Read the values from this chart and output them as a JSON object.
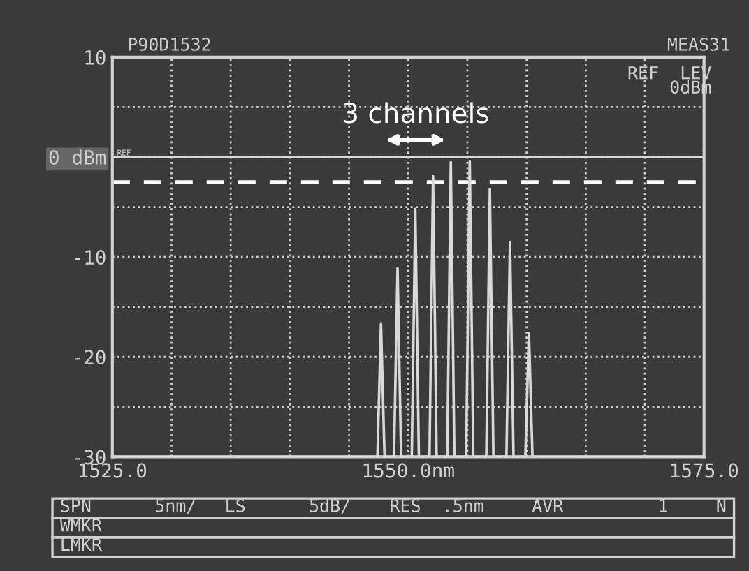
{
  "chart_data": {
    "type": "line",
    "x": [
      1525.0,
      1547.4,
      1547.7,
      1548.0,
      1548.8,
      1549.1,
      1549.4,
      1550.3,
      1550.6,
      1550.9,
      1551.8,
      1552.1,
      1552.4,
      1553.3,
      1553.6,
      1553.9,
      1554.9,
      1555.2,
      1555.5,
      1556.6,
      1556.9,
      1557.2,
      1558.3,
      1558.6,
      1558.9,
      1559.9,
      1560.2,
      1560.5,
      1575.0
    ],
    "series": [
      {
        "color": "#d9d9d9",
        "values": [
          -30,
          -30,
          -16.7,
          -30,
          -30,
          -11.1,
          -30,
          -30,
          -5.2,
          -30,
          -30,
          -1.9,
          -30,
          -30,
          -0.5,
          -30,
          -30,
          -0.4,
          -30,
          -30,
          -3.2,
          -30,
          -30,
          -8.5,
          -30,
          -30,
          -17.6,
          -30,
          -30
        ]
      }
    ],
    "xlim": [
      1525,
      1575
    ],
    "ylim": [
      -30,
      10
    ],
    "xticks": [
      {
        "value": 1525,
        "label": "1525.0"
      },
      {
        "value": 1530,
        "label": null
      },
      {
        "value": 1535,
        "label": null
      },
      {
        "value": 1540,
        "label": null
      },
      {
        "value": 1545,
        "label": null
      },
      {
        "value": 1550,
        "label": "1550.0nm"
      },
      {
        "value": 1555,
        "label": null
      },
      {
        "value": 1560,
        "label": null
      },
      {
        "value": 1565,
        "label": null
      },
      {
        "value": 1570,
        "label": null
      },
      {
        "value": 1575,
        "label": "1575.0"
      }
    ],
    "yticks": [
      10,
      {
        "value": 5,
        "label": null
      },
      {
        "value": 0,
        "label": "0 dBm"
      },
      {
        "value": -5,
        "label": null
      },
      -10,
      {
        "value": -15,
        "label": null
      },
      -20,
      {
        "value": -25,
        "label": null
      },
      -30
    ],
    "grid": true,
    "line_style": "solid",
    "marker": "none",
    "ref_lines": [
      {
        "axis": "y",
        "value": 0,
        "label": "REF",
        "color": "#d9d9d9",
        "line_style": "solid"
      },
      {
        "axis": "y",
        "value": -2.5,
        "color": "#ffffff",
        "line_style": "dashed"
      }
    ],
    "annotations": [
      "3 channels",
      "P90D1532",
      "MEAS31",
      "REF  LEV\n0dBm",
      "SPN      5nm/",
      "LS      5dB/",
      "RES  .5nm",
      "AVR         1",
      "N",
      "WMKR",
      "LMKR"
    ]
  }
}
